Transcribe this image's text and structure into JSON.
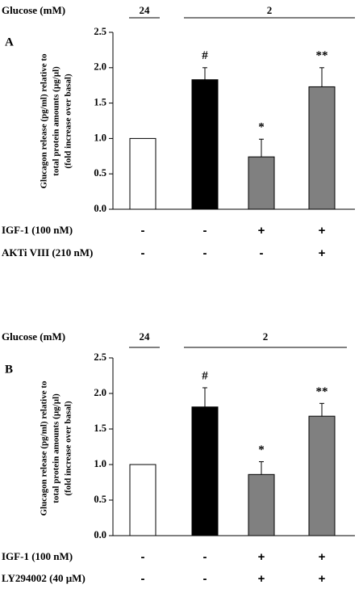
{
  "chart_data": [
    {
      "type": "bar",
      "panel_label": "A",
      "condition_header": {
        "label": "Glucose (mM)",
        "groups": [
          "24",
          "2"
        ]
      },
      "ylabel_lines": [
        "Glucagon release (pg/ml) relative to",
        "total protein amounts (µg/µl)",
        "(fold increase over basal)"
      ],
      "yticks": [
        "0.0",
        "0.5",
        "1.0",
        "1.5",
        "2.0",
        "2.5"
      ],
      "ylim": [
        0,
        2.5
      ],
      "values": [
        1.0,
        1.83,
        0.74,
        1.73
      ],
      "errors": [
        0,
        0.17,
        0.25,
        0.27
      ],
      "bar_colors": [
        "#ffffff",
        "#000000",
        "#808080",
        "#808080"
      ],
      "annotations": [
        "",
        "#",
        "*",
        "**"
      ],
      "treatments": [
        {
          "label": "IGF-1 (100 nM)",
          "signs": [
            "-",
            "-",
            "+",
            "+"
          ]
        },
        {
          "label": "AKTi VIII (210 nM)",
          "signs": [
            "-",
            "-",
            "-",
            "+"
          ]
        }
      ]
    },
    {
      "type": "bar",
      "panel_label": "B",
      "condition_header": {
        "label": "Glucose (mM)",
        "groups": [
          "24",
          "2"
        ]
      },
      "ylabel_lines": [
        "Glucagon release (pg/ml) relative to",
        "total protein amounts (µg/µl)",
        "(fold increase over basal)"
      ],
      "yticks": [
        "0.0",
        "0.5",
        "1.0",
        "1.5",
        "2.0",
        "2.5"
      ],
      "ylim": [
        0,
        2.5
      ],
      "values": [
        1.0,
        1.81,
        0.86,
        1.68
      ],
      "errors": [
        0,
        0.27,
        0.18,
        0.18
      ],
      "bar_colors": [
        "#ffffff",
        "#000000",
        "#808080",
        "#808080"
      ],
      "annotations": [
        "",
        "#",
        "*",
        "**"
      ],
      "treatments": [
        {
          "label": "IGF-1 (100 nM)",
          "signs": [
            "-",
            "-",
            "+",
            "+"
          ]
        },
        {
          "label": "LY294002 (40 µM)",
          "signs": [
            "-",
            "-",
            "+",
            "+"
          ]
        }
      ]
    }
  ]
}
